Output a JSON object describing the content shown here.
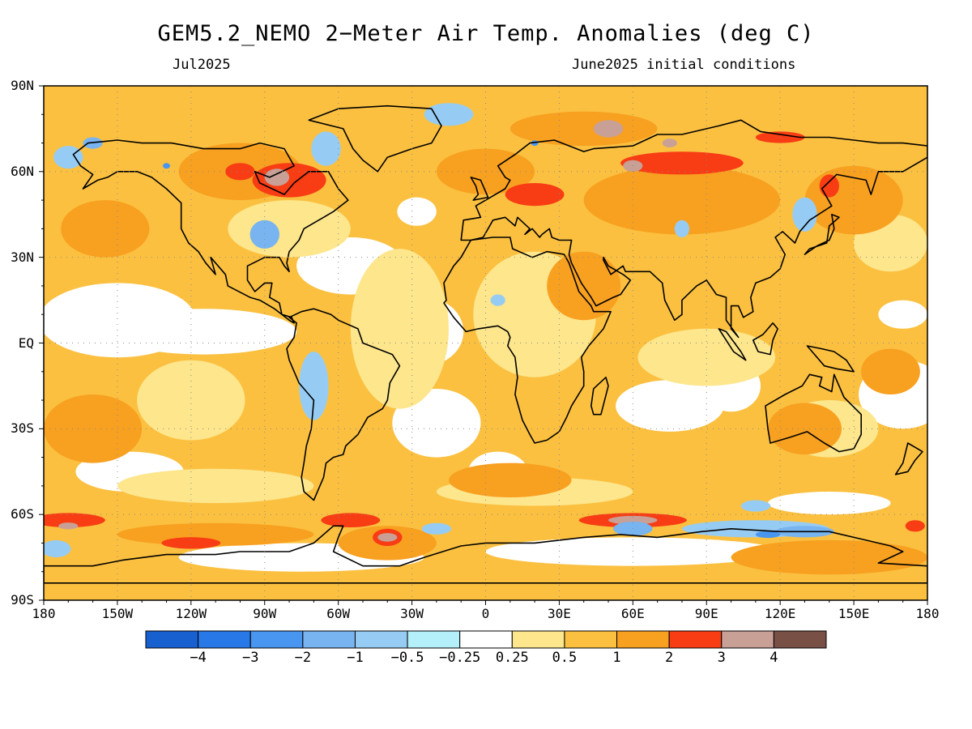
{
  "title": "GEM5.2_NEMO 2−Meter Air Temp. Anomalies (deg C)",
  "subtitle_left": "Jul2025",
  "subtitle_right": "June2025 initial conditions",
  "lat_labels": [
    "90N",
    "60N",
    "30N",
    "EQ",
    "30S",
    "60S",
    "90S"
  ],
  "lat_values": [
    90,
    60,
    30,
    0,
    -30,
    -60,
    -90
  ],
  "lon_labels": [
    "180",
    "150W",
    "120W",
    "90W",
    "60W",
    "30W",
    "0",
    "30E",
    "60E",
    "90E",
    "120E",
    "150E",
    "180"
  ],
  "lon_values": [
    -180,
    -150,
    -120,
    -90,
    -60,
    -30,
    0,
    30,
    60,
    90,
    120,
    150,
    180
  ],
  "colorbar": {
    "colors": [
      "#1860d0",
      "#2878e8",
      "#4896f0",
      "#78b4f0",
      "#96ccf4",
      "#b4f0fa",
      "#ffffff",
      "#fde68c",
      "#fbc040",
      "#f8a020",
      "#f83c14",
      "#c8a096",
      "#785046"
    ],
    "labels": [
      "−4",
      "−3",
      "−2",
      "−1",
      "−0.5",
      "−0.25",
      "0.25",
      "0.5",
      "1",
      "2",
      "3",
      "4"
    ]
  },
  "palette": {
    "ocean_base": "#fbc040",
    "land_base": "#fde68c",
    "neutral": "#ffffff",
    "warm": "#f8a020",
    "hot": "#f83c14",
    "very_hot": "#c8a096",
    "cool": "#96ccf4",
    "cold": "#78b4f0",
    "very_cold": "#4896f0",
    "coast": "#000000",
    "grid": "#8a8a8a"
  }
}
